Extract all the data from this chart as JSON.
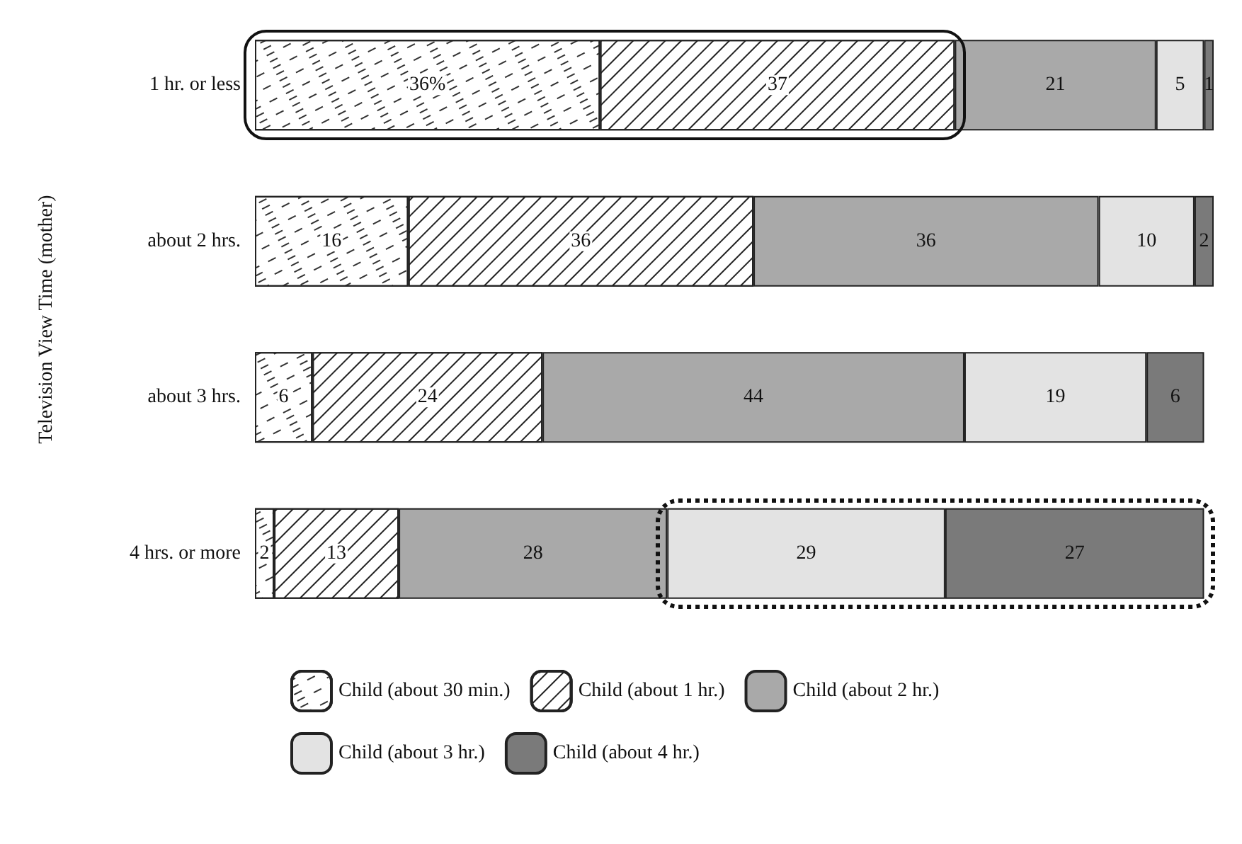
{
  "chart_data": {
    "type": "bar",
    "orientation": "horizontal",
    "stacked": true,
    "ylabel": "Television View Time (mother)",
    "categories": [
      "1 hr. or less",
      "about 2 hrs.",
      "about 3 hrs.",
      "4 hrs. or more"
    ],
    "series": [
      {
        "name": "Child (about 30 min.)",
        "color": "#ffffff",
        "values": [
          36,
          16,
          6,
          2
        ],
        "value_labels": [
          "36%",
          "16",
          "6",
          "2"
        ]
      },
      {
        "name": "Child (about 1 hr.)",
        "color": "#ffffff",
        "values": [
          37,
          36,
          24,
          13
        ],
        "value_labels": [
          "37",
          "36",
          "24",
          "13"
        ]
      },
      {
        "name": "Child (about 2 hr.)",
        "color": "#a9a9a9",
        "values": [
          21,
          36,
          44,
          28
        ],
        "value_labels": [
          "21",
          "36",
          "44",
          "28"
        ]
      },
      {
        "name": "Child (about 3 hr.)",
        "color": "#e3e3e3",
        "values": [
          5,
          10,
          19,
          29
        ],
        "value_labels": [
          "5",
          "10",
          "19",
          "29"
        ]
      },
      {
        "name": "Child (about 4 hr.)",
        "color": "#7a7a7a",
        "values": [
          1,
          2,
          6,
          27
        ],
        "value_labels": [
          "1",
          "2",
          "6",
          "27"
        ]
      }
    ],
    "legend": "bottom",
    "tick_labels": "y"
  }
}
